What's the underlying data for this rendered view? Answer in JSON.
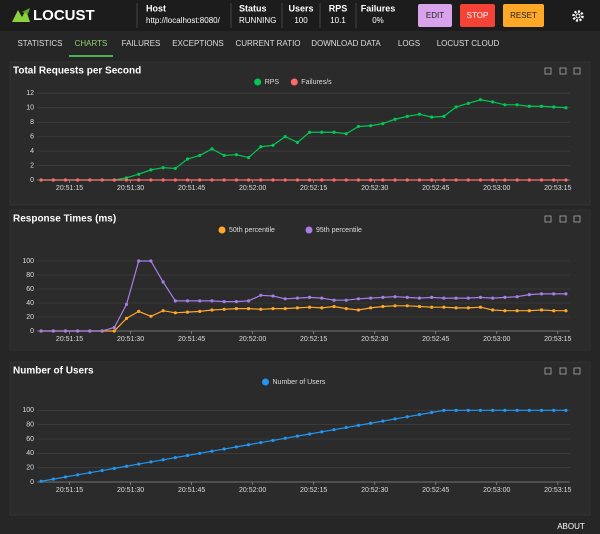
{
  "header": {
    "logo": "LOCUST",
    "host_label": "Host",
    "host": "http://localhost:8080/",
    "status_label": "Status",
    "status": "RUNNING",
    "users_label": "Users",
    "users": 100,
    "rps_label": "RPS",
    "rps": 10.1,
    "failures_label": "Failures",
    "failures": "0%",
    "buttons": [
      "EDIT",
      "STOP",
      "RESET"
    ]
  },
  "tabs": [
    "STATISTICS",
    "CHARTS",
    "FAILURES",
    "EXCEPTIONS",
    "CURRENT RATIO",
    "DOWNLOAD DATA",
    "LOGS",
    "LOCUST CLOUD"
  ],
  "active_tab": 1,
  "chart_data": [
    {
      "type": "line",
      "title": "Total Requests per Second",
      "x": [
        "20:51:08",
        "20:51:11",
        "20:51:14",
        "20:51:17",
        "20:51:20",
        "20:51:23",
        "20:51:26",
        "20:51:29",
        "20:51:32",
        "20:51:35",
        "20:51:38",
        "20:51:41",
        "20:51:44",
        "20:51:47",
        "20:51:50",
        "20:51:53",
        "20:51:56",
        "20:51:59",
        "20:52:02",
        "20:52:05",
        "20:52:08",
        "20:52:11",
        "20:52:14",
        "20:52:17",
        "20:52:20",
        "20:52:23",
        "20:52:26",
        "20:52:29",
        "20:52:32",
        "20:52:35",
        "20:52:38",
        "20:52:41",
        "20:52:44",
        "20:52:47",
        "20:52:50",
        "20:52:53",
        "20:52:56",
        "20:52:59",
        "20:53:02",
        "20:53:05",
        "20:53:08",
        "20:53:11",
        "20:53:14",
        "20:53:17"
      ],
      "series": [
        {
          "name": "RPS",
          "color": "#00c853",
          "values": [
            0,
            0,
            0,
            0,
            0,
            0,
            0,
            0.3,
            0.8,
            1.4,
            1.7,
            1.6,
            2.9,
            3.4,
            4.3,
            3.4,
            3.5,
            3.1,
            4.6,
            4.8,
            6.0,
            5.2,
            6.6,
            6.6,
            6.6,
            6.4,
            7.4,
            7.5,
            7.8,
            8.4,
            8.8,
            9.1,
            8.7,
            8.8,
            10.1,
            10.6,
            11.1,
            10.8,
            10.4,
            10.4,
            10.2,
            10.2,
            10.1,
            10.0
          ]
        },
        {
          "name": "Failures/s",
          "color": "#ff6b6b",
          "values": [
            0,
            0,
            0,
            0,
            0,
            0,
            0,
            0,
            0,
            0,
            0,
            0,
            0,
            0,
            0,
            0,
            0,
            0,
            0,
            0,
            0,
            0,
            0,
            0,
            0,
            0,
            0,
            0,
            0,
            0,
            0,
            0,
            0,
            0,
            0,
            0,
            0,
            0,
            0,
            0,
            0,
            0,
            0,
            0
          ]
        }
      ],
      "xlim": [
        "20:51:07",
        "20:53:18"
      ],
      "xticks": [
        "20:51:15",
        "20:51:30",
        "20:51:45",
        "20:52:00",
        "20:52:15",
        "20:52:30",
        "20:52:45",
        "20:53:00",
        "20:53:15"
      ],
      "ylim": [
        0,
        13
      ],
      "yticks": [
        0,
        2,
        4,
        6,
        8,
        10,
        12
      ],
      "grid": true
    },
    {
      "type": "line",
      "title": "Response Times (ms)",
      "x": [
        "20:51:08",
        "20:51:11",
        "20:51:14",
        "20:51:17",
        "20:51:20",
        "20:51:23",
        "20:51:26",
        "20:51:29",
        "20:51:32",
        "20:51:35",
        "20:51:38",
        "20:51:41",
        "20:51:44",
        "20:51:47",
        "20:51:50",
        "20:51:53",
        "20:51:56",
        "20:51:59",
        "20:52:02",
        "20:52:05",
        "20:52:08",
        "20:52:11",
        "20:52:14",
        "20:52:17",
        "20:52:20",
        "20:52:23",
        "20:52:26",
        "20:52:29",
        "20:52:32",
        "20:52:35",
        "20:52:38",
        "20:52:41",
        "20:52:44",
        "20:52:47",
        "20:52:50",
        "20:52:53",
        "20:52:56",
        "20:52:59",
        "20:53:02",
        "20:53:05",
        "20:53:08",
        "20:53:11",
        "20:53:14",
        "20:53:17"
      ],
      "series": [
        {
          "name": "50th percentile",
          "color": "#ffa726",
          "values": [
            0,
            0,
            0,
            0,
            0,
            0,
            0,
            18,
            28,
            21,
            29,
            26,
            27,
            28,
            30,
            31,
            32,
            32,
            31,
            32,
            32,
            33,
            34,
            33,
            35,
            32,
            30,
            33,
            35,
            36,
            36,
            35,
            34,
            34,
            33,
            33,
            34,
            30,
            29,
            29,
            29,
            30,
            29,
            29
          ]
        },
        {
          "name": "95th percentile",
          "color": "#a77de8",
          "values": [
            0,
            0,
            0,
            0,
            0,
            0,
            5,
            38,
            100,
            100,
            70,
            43,
            43,
            43,
            43,
            42,
            42,
            43,
            51,
            50,
            46,
            47,
            48,
            47,
            44,
            44,
            46,
            47,
            48,
            49,
            48,
            47,
            48,
            47,
            47,
            47,
            48,
            47,
            48,
            49,
            52,
            53,
            53,
            53
          ]
        }
      ],
      "xlim": [
        "20:51:07",
        "20:53:18"
      ],
      "xticks": [
        "20:51:15",
        "20:51:30",
        "20:51:45",
        "20:52:00",
        "20:52:15",
        "20:52:30",
        "20:52:45",
        "20:53:00",
        "20:53:15"
      ],
      "ylim": [
        0,
        120
      ],
      "yticks": [
        0,
        20,
        40,
        60,
        80,
        100
      ],
      "grid": true
    },
    {
      "type": "line",
      "title": "Number of Users",
      "x": [
        "20:51:08",
        "20:51:11",
        "20:51:14",
        "20:51:17",
        "20:51:20",
        "20:51:23",
        "20:51:26",
        "20:51:29",
        "20:51:32",
        "20:51:35",
        "20:51:38",
        "20:51:41",
        "20:51:44",
        "20:51:47",
        "20:51:50",
        "20:51:53",
        "20:51:56",
        "20:51:59",
        "20:52:02",
        "20:52:05",
        "20:52:08",
        "20:52:11",
        "20:52:14",
        "20:52:17",
        "20:52:20",
        "20:52:23",
        "20:52:26",
        "20:52:29",
        "20:52:32",
        "20:52:35",
        "20:52:38",
        "20:52:41",
        "20:52:44",
        "20:52:47",
        "20:52:50",
        "20:52:53",
        "20:52:56",
        "20:52:59",
        "20:53:02",
        "20:53:05",
        "20:53:08",
        "20:53:11",
        "20:53:14",
        "20:53:17"
      ],
      "series": [
        {
          "name": "Number of Users",
          "color": "#2196f3",
          "values": [
            1,
            4,
            7,
            10,
            13,
            16,
            19,
            22,
            25,
            28,
            31,
            34,
            37,
            40,
            43,
            46,
            49,
            52,
            55,
            58,
            61,
            64,
            67,
            70,
            73,
            76,
            79,
            82,
            85,
            88,
            91,
            94,
            97,
            100,
            100,
            100,
            100,
            100,
            100,
            100,
            100,
            100,
            100,
            100
          ]
        }
      ],
      "xlim": [
        "20:51:07",
        "20:53:18"
      ],
      "xticks": [
        "20:51:15",
        "20:51:30",
        "20:51:45",
        "20:52:00",
        "20:52:15",
        "20:52:30",
        "20:52:45",
        "20:53:00",
        "20:53:15"
      ],
      "ylim": [
        0,
        120
      ],
      "yticks": [
        0,
        20,
        40,
        60,
        80,
        100
      ],
      "grid": true
    }
  ],
  "footer": "ABOUT"
}
